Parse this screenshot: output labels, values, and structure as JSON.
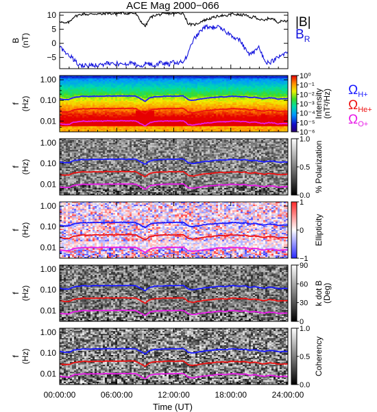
{
  "figure": {
    "title": "ACE Mag 2000−066",
    "xlabel": "Time (UT)",
    "xticks": [
      "00:00:00",
      "06:00:00",
      "12:00:00",
      "18:00:00",
      "24:00:00"
    ],
    "xlim_hours": [
      0,
      24
    ]
  },
  "chart_data": [
    {
      "type": "line",
      "id": "field",
      "ylabel": "B",
      "yunit": "(nT)",
      "ylim": [
        -9,
        11
      ],
      "yticks": [
        "10",
        "5",
        "0",
        "−5"
      ],
      "ytick_values": [
        10,
        5,
        0,
        -5
      ],
      "series": [
        {
          "name": "|B|",
          "color": "#000000",
          "x": [
            0,
            0.5,
            1,
            1.5,
            2,
            2.5,
            3,
            3.5,
            4,
            4.5,
            5,
            5.5,
            6,
            6.5,
            7,
            7.5,
            8,
            8.5,
            9,
            9.5,
            10,
            10.5,
            11,
            11.5,
            12,
            12.5,
            13,
            13.5,
            14,
            14.5,
            15,
            15.5,
            16,
            16.5,
            17,
            17.5,
            18,
            18.5,
            19,
            19.5,
            20,
            20.5,
            21,
            21.5,
            22,
            22.5,
            23,
            23.5,
            24
          ],
          "y": [
            8,
            7,
            7.5,
            9.5,
            10,
            10.5,
            10.2,
            10.5,
            10.5,
            10.3,
            10.8,
            10.5,
            10.6,
            10.8,
            10.6,
            10.8,
            10.5,
            8,
            6,
            9,
            10,
            10.2,
            10.4,
            10.6,
            10.5,
            10.7,
            10.8,
            7,
            6.5,
            7,
            8,
            8.5,
            9,
            9.5,
            10,
            9.5,
            10.5,
            10.3,
            10,
            10.2,
            9,
            9.5,
            8.5,
            8,
            9,
            8.5,
            7.5,
            8,
            8
          ]
        },
        {
          "name": "B_R",
          "color": "#1010dd",
          "x": [
            0,
            0.5,
            1,
            1.5,
            2,
            2.5,
            3,
            3.5,
            4,
            4.5,
            5,
            5.5,
            6,
            6.5,
            7,
            7.5,
            8,
            8.5,
            9,
            9.5,
            10,
            10.5,
            11,
            11.5,
            12,
            12.5,
            13,
            13.5,
            14,
            14.5,
            15,
            15.5,
            16,
            16.5,
            17,
            17.5,
            18,
            18.5,
            19,
            19.5,
            20,
            20.5,
            21,
            21.5,
            22,
            22.5,
            23,
            23.5,
            24
          ],
          "y": [
            -1,
            -3,
            -4,
            -6,
            -7.5,
            -8,
            -7.8,
            -7.5,
            -8,
            -7.6,
            -7,
            -7.5,
            -7.2,
            -7.5,
            -7.8,
            -7,
            -7.5,
            -8.5,
            -7,
            -7.5,
            -8,
            -7,
            -7.2,
            -7.5,
            -6.5,
            -7,
            -6.5,
            -4,
            1,
            3,
            5,
            6,
            5.5,
            6,
            5,
            4,
            3,
            2,
            1,
            -2,
            -4,
            -3,
            -1,
            -6,
            -7,
            -6,
            -5,
            -4,
            -3
          ]
        }
      ],
      "legend": [
        "|B|",
        "B_R"
      ]
    },
    {
      "type": "heatmap",
      "id": "intensity",
      "ylabel": "f",
      "yunit": "(Hz)",
      "ylim": [
        0.003,
        1.6
      ],
      "yscale": "log",
      "yticks": [
        "1.00",
        "0.10",
        "0.01"
      ],
      "ytick_values": [
        1,
        0.1,
        0.01
      ],
      "colorbar": {
        "label": "Intensity",
        "unit": "(nT²/Hz)",
        "colormap": "rainbow",
        "ticks": [
          "10⁰",
          "10⁻¹",
          "10⁻²",
          "10⁻³",
          "10⁻⁴",
          "10⁻⁵",
          "10⁻⁶"
        ],
        "tick_exponents": [
          0,
          -1,
          -2,
          -3,
          -4,
          -5,
          -6
        ],
        "range_exponents": [
          -6,
          0
        ]
      },
      "legend": [
        "ΩH+",
        "ΩHe+",
        "ΩO+"
      ]
    },
    {
      "type": "heatmap",
      "id": "polarization",
      "ylabel": "f",
      "yunit": "(Hz)",
      "ylim": [
        0.003,
        1.6
      ],
      "yscale": "log",
      "yticks": [
        "1.00",
        "0.10",
        "0.01"
      ],
      "ytick_values": [
        1,
        0.1,
        0.01
      ],
      "colorbar": {
        "label": "% Polarization",
        "unit": "",
        "colormap": "gray",
        "ticks": [
          "1.0",
          "0.5",
          "0.0"
        ],
        "tick_values": [
          1,
          0.5,
          0
        ],
        "range": [
          0,
          1
        ]
      }
    },
    {
      "type": "heatmap",
      "id": "ellipticity",
      "ylabel": "f",
      "yunit": "(Hz)",
      "ylim": [
        0.003,
        1.6
      ],
      "yscale": "log",
      "yticks": [
        "1.00",
        "0.10",
        "0.01"
      ],
      "ytick_values": [
        1,
        0.1,
        0.01
      ],
      "colorbar": {
        "label": "Ellipticity",
        "unit": "",
        "colormap": "blue-white-red",
        "ticks": [
          "1",
          "0",
          "−1"
        ],
        "tick_values": [
          1,
          0,
          -1
        ],
        "range": [
          -1,
          1
        ]
      }
    },
    {
      "type": "heatmap",
      "id": "kdotb",
      "ylabel": "f",
      "yunit": "(Hz)",
      "ylim": [
        0.003,
        1.6
      ],
      "yscale": "log",
      "yticks": [
        "1.00",
        "0.10",
        "0.01"
      ],
      "ytick_values": [
        1,
        0.1,
        0.01
      ],
      "colorbar": {
        "label": "k dot B",
        "unit": "(Deg)",
        "colormap": "gray",
        "ticks": [
          "90",
          "60",
          "30",
          "0"
        ],
        "tick_values": [
          90,
          60,
          30,
          0
        ],
        "range": [
          0,
          90
        ]
      }
    },
    {
      "type": "heatmap",
      "id": "coherency",
      "ylabel": "f",
      "yunit": "(Hz)",
      "ylim": [
        0.003,
        1.6
      ],
      "yscale": "log",
      "yticks": [
        "1.00",
        "0.10",
        "0.01"
      ],
      "ytick_values": [
        1,
        0.1,
        0.01
      ],
      "colorbar": {
        "label": "Coherency",
        "unit": "",
        "colormap": "gray",
        "ticks": [
          "1.0",
          "0.5",
          "0.0"
        ],
        "tick_values": [
          1,
          0.5,
          0
        ],
        "range": [
          0,
          1
        ]
      }
    }
  ],
  "gyrofrequency_lines": {
    "x": [
      0,
      0.5,
      1,
      1.5,
      2,
      2.5,
      3,
      3.5,
      4,
      4.5,
      5,
      5.5,
      6,
      6.5,
      7,
      7.5,
      8,
      8.5,
      9,
      9.5,
      10,
      10.5,
      11,
      11.5,
      12,
      12.5,
      13,
      13.5,
      14,
      14.5,
      15,
      15.5,
      16,
      16.5,
      17,
      17.5,
      18,
      18.5,
      19,
      19.5,
      20,
      20.5,
      21,
      21.5,
      22,
      22.5,
      23,
      23.5,
      24
    ],
    "series": [
      {
        "name": "ΩH+",
        "color": "#1a1aff",
        "y": [
          0.12,
          0.11,
          0.11,
          0.14,
          0.15,
          0.16,
          0.155,
          0.16,
          0.16,
          0.158,
          0.165,
          0.16,
          0.162,
          0.165,
          0.162,
          0.165,
          0.16,
          0.12,
          0.09,
          0.135,
          0.15,
          0.155,
          0.158,
          0.162,
          0.16,
          0.163,
          0.165,
          0.11,
          0.1,
          0.11,
          0.12,
          0.13,
          0.135,
          0.145,
          0.15,
          0.145,
          0.16,
          0.158,
          0.15,
          0.155,
          0.135,
          0.145,
          0.13,
          0.12,
          0.135,
          0.13,
          0.115,
          0.12,
          0.12
        ]
      },
      {
        "name": "ΩHe+",
        "color": "#ee1111",
        "y": [
          0.03,
          0.0275,
          0.0275,
          0.035,
          0.0375,
          0.04,
          0.0388,
          0.04,
          0.04,
          0.0395,
          0.0412,
          0.04,
          0.0405,
          0.0412,
          0.0405,
          0.0412,
          0.04,
          0.03,
          0.0225,
          0.0338,
          0.0375,
          0.0388,
          0.0395,
          0.0405,
          0.04,
          0.0408,
          0.0412,
          0.0275,
          0.025,
          0.0275,
          0.03,
          0.0325,
          0.0338,
          0.0362,
          0.0375,
          0.0362,
          0.04,
          0.0395,
          0.0375,
          0.0388,
          0.0338,
          0.0362,
          0.0325,
          0.03,
          0.0338,
          0.0325,
          0.0288,
          0.03,
          0.03
        ]
      },
      {
        "name": "ΩO+",
        "color": "#e81be8",
        "y": [
          0.0075,
          0.0069,
          0.0069,
          0.0088,
          0.0094,
          0.01,
          0.0097,
          0.01,
          0.01,
          0.0099,
          0.0103,
          0.01,
          0.0101,
          0.0103,
          0.0101,
          0.0103,
          0.01,
          0.0075,
          0.0056,
          0.0084,
          0.0094,
          0.0097,
          0.0099,
          0.0101,
          0.01,
          0.0102,
          0.0103,
          0.0069,
          0.0063,
          0.0069,
          0.0075,
          0.0081,
          0.0084,
          0.0091,
          0.0094,
          0.0091,
          0.01,
          0.0099,
          0.0094,
          0.0097,
          0.0084,
          0.0091,
          0.0081,
          0.0075,
          0.0084,
          0.0081,
          0.0072,
          0.0075,
          0.0075
        ]
      }
    ]
  },
  "legend": {
    "field": [
      {
        "text": "|B|",
        "color": "#000000"
      },
      {
        "text": "B",
        "sub": "R",
        "color": "#1010dd"
      }
    ],
    "gyro": [
      {
        "text": "Ω",
        "sub": "H+",
        "color": "#1a1aff"
      },
      {
        "text": "Ω",
        "sub": "He+",
        "color": "#ee1111"
      },
      {
        "text": "Ω",
        "sub": "O+",
        "color": "#e81be8"
      }
    ]
  }
}
